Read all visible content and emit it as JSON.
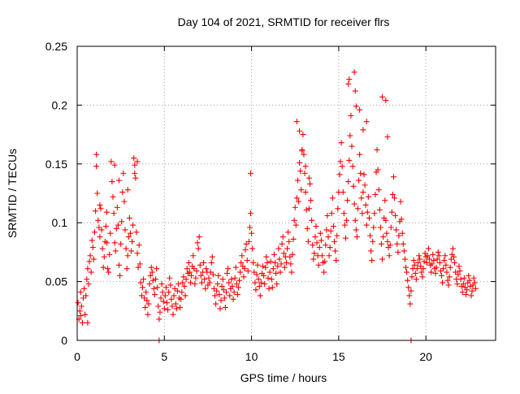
{
  "chart_data": {
    "type": "scatter",
    "title": "Day 104 of 2021, SRMTID for receiver flrs",
    "xlabel": "GPS time / hours",
    "ylabel": "SRMTID / TECUs",
    "xlim": [
      0,
      24
    ],
    "ylim": [
      0,
      0.25
    ],
    "xticks": [
      0,
      5,
      10,
      15,
      20
    ],
    "xtick_labels": [
      "0",
      "5",
      "10",
      "15",
      "20"
    ],
    "yticks": [
      0,
      0.05,
      0.1,
      0.15,
      0.2,
      0.25
    ],
    "ytick_labels": [
      "0",
      "0.05",
      "0.1",
      "0.15",
      "0.2",
      "0.25"
    ],
    "grid": true,
    "marker": "+",
    "color": "#ff0000",
    "series": [
      {
        "name": "SRMTID",
        "x": [
          0.05,
          0.1,
          0.15,
          0.2,
          0.25,
          0.3,
          0.35,
          0.4,
          0.45,
          0.5,
          0.55,
          0.6,
          0.65,
          0.7,
          0.75,
          0.8,
          0.85,
          0.9,
          0.95,
          1.0,
          1.05,
          1.1,
          1.15,
          1.2,
          1.25,
          1.3,
          1.35,
          1.4,
          1.45,
          1.5,
          1.55,
          1.6,
          1.65,
          1.7,
          1.75,
          1.8,
          1.85,
          1.9,
          1.95,
          2.0,
          2.05,
          2.1,
          2.15,
          2.2,
          2.25,
          2.3,
          2.35,
          2.4,
          2.45,
          2.5,
          2.55,
          2.6,
          2.65,
          2.7,
          2.75,
          2.8,
          2.85,
          2.9,
          2.95,
          3.0,
          3.05,
          3.1,
          3.15,
          3.2,
          3.25,
          3.3,
          3.35,
          3.4,
          3.45,
          3.5,
          3.55,
          3.6,
          3.65,
          3.7,
          3.75,
          3.8,
          3.85,
          3.9,
          3.95,
          4.0,
          4.05,
          4.1,
          4.15,
          4.2,
          4.25,
          4.3,
          4.35,
          4.4,
          4.45,
          4.5,
          4.55,
          4.6,
          4.65,
          4.7,
          4.75,
          4.8,
          4.85,
          4.9,
          4.95,
          5.0,
          5.05,
          5.1,
          5.15,
          5.2,
          5.25,
          5.3,
          5.35,
          5.4,
          5.45,
          5.5,
          5.55,
          5.6,
          5.65,
          5.7,
          5.75,
          5.8,
          5.85,
          5.9,
          5.95,
          6.0,
          6.05,
          6.1,
          6.15,
          6.2,
          6.25,
          6.3,
          6.35,
          6.4,
          6.45,
          6.5,
          6.55,
          6.6,
          6.65,
          6.7,
          6.75,
          6.8,
          6.85,
          6.9,
          6.95,
          7.0,
          7.05,
          7.1,
          7.15,
          7.2,
          7.25,
          7.3,
          7.35,
          7.4,
          7.45,
          7.5,
          7.55,
          7.6,
          7.65,
          7.7,
          7.75,
          7.8,
          7.85,
          7.9,
          7.95,
          8.0,
          8.05,
          8.1,
          8.15,
          8.2,
          8.25,
          8.3,
          8.35,
          8.4,
          8.45,
          8.5,
          8.55,
          8.6,
          8.65,
          8.7,
          8.75,
          8.8,
          8.85,
          8.9,
          8.95,
          9.0,
          9.05,
          9.1,
          9.15,
          9.2,
          9.25,
          9.3,
          9.35,
          9.4,
          9.45,
          9.5,
          9.55,
          9.6,
          9.65,
          9.7,
          9.75,
          9.8,
          9.85,
          9.9,
          9.95,
          10.0,
          10.05,
          10.1,
          10.15,
          10.2,
          10.25,
          10.3,
          10.35,
          10.4,
          10.45,
          10.5,
          10.55,
          10.6,
          10.65,
          10.7,
          10.75,
          10.8,
          10.85,
          10.9,
          10.95,
          11.0,
          11.05,
          11.1,
          11.15,
          11.2,
          11.25,
          11.3,
          11.35,
          11.4,
          11.45,
          11.5,
          11.55,
          11.6,
          11.65,
          11.7,
          11.75,
          11.8,
          11.85,
          11.9,
          11.95,
          12.0,
          12.05,
          12.1,
          12.15,
          12.2,
          12.25,
          12.3,
          12.35,
          12.4,
          12.45,
          12.5,
          12.55,
          12.6,
          12.65,
          12.7,
          12.75,
          12.8,
          12.85,
          12.9,
          12.95,
          13.0,
          13.05,
          13.1,
          13.15,
          13.2,
          13.25,
          13.3,
          13.35,
          13.4,
          13.45,
          13.5,
          13.55,
          13.6,
          13.65,
          13.7,
          13.75,
          13.8,
          13.85,
          13.9,
          13.95,
          14.0,
          14.05,
          14.1,
          14.15,
          14.2,
          14.25,
          14.3,
          14.35,
          14.4,
          14.45,
          14.5,
          14.55,
          14.6,
          14.65,
          14.7,
          14.75,
          14.8,
          14.85,
          14.9,
          14.95,
          15.0,
          15.05,
          15.1,
          15.15,
          15.2,
          15.25,
          15.3,
          15.35,
          15.4,
          15.45,
          15.5,
          15.55,
          15.6,
          15.65,
          15.7,
          15.75,
          15.8,
          15.85,
          15.9,
          15.95,
          16.0,
          16.05,
          16.1,
          16.15,
          16.2,
          16.25,
          16.3,
          16.35,
          16.4,
          16.45,
          16.5,
          16.55,
          16.6,
          16.65,
          16.7,
          16.75,
          16.8,
          16.85,
          16.9,
          16.95,
          17.0,
          17.05,
          17.1,
          17.15,
          17.2,
          17.25,
          17.3,
          17.35,
          17.4,
          17.45,
          17.5,
          17.55,
          17.6,
          17.65,
          17.7,
          17.75,
          17.8,
          17.85,
          17.9,
          17.95,
          18.0,
          18.05,
          18.1,
          18.15,
          18.2,
          18.25,
          18.3,
          18.35,
          18.4,
          18.45,
          18.5,
          18.55,
          18.6,
          18.65,
          18.7,
          18.75,
          18.8,
          18.85,
          18.9,
          18.95,
          19.0,
          19.05,
          19.1,
          19.15,
          19.2,
          19.25,
          19.3,
          19.35,
          19.4,
          19.45,
          19.5,
          19.55,
          19.6,
          19.65,
          19.7,
          19.75,
          19.8,
          19.85,
          19.9,
          19.95,
          20.0,
          20.05,
          20.1,
          20.15,
          20.2,
          20.25,
          20.3,
          20.35,
          20.4,
          20.45,
          20.5,
          20.55,
          20.6,
          20.65,
          20.7,
          20.75,
          20.8,
          20.85,
          20.9,
          20.95,
          21.0,
          21.05,
          21.1,
          21.15,
          21.2,
          21.25,
          21.3,
          21.35,
          21.4,
          21.45,
          21.5,
          21.55,
          21.6,
          21.65,
          21.7,
          21.75,
          21.8,
          21.85,
          21.9,
          21.95,
          22.0,
          22.05,
          22.1,
          22.15,
          22.2,
          22.25,
          22.3,
          22.35,
          22.4,
          22.45,
          22.5,
          22.55,
          22.6,
          22.65,
          22.7,
          22.75,
          22.8,
          22.85,
          0.2,
          0.6,
          1.1,
          1.3,
          1.7,
          2.15,
          2.4,
          2.9,
          3.3,
          3.45,
          12.6,
          12.75,
          12.9,
          13.1,
          13.3,
          15.55,
          15.6,
          15.9,
          15.95,
          16.0,
          16.2,
          16.4,
          16.6,
          17.5,
          17.7,
          17.8,
          4.7,
          19.15,
          9.95
        ],
        "y": [
          0.032,
          0.018,
          0.025,
          0.041,
          0.029,
          0.015,
          0.036,
          0.044,
          0.022,
          0.038,
          0.052,
          0.061,
          0.048,
          0.067,
          0.072,
          0.058,
          0.085,
          0.079,
          0.069,
          0.092,
          0.11,
          0.148,
          0.125,
          0.102,
          0.096,
          0.088,
          0.112,
          0.094,
          0.078,
          0.062,
          0.071,
          0.084,
          0.097,
          0.083,
          0.061,
          0.058,
          0.073,
          0.091,
          0.152,
          0.135,
          0.122,
          0.108,
          0.083,
          0.076,
          0.095,
          0.113,
          0.098,
          0.064,
          0.055,
          0.082,
          0.101,
          0.126,
          0.142,
          0.118,
          0.094,
          0.078,
          0.061,
          0.072,
          0.088,
          0.104,
          0.091,
          0.076,
          0.084,
          0.098,
          0.155,
          0.149,
          0.138,
          0.092,
          0.074,
          0.062,
          0.081,
          0.065,
          0.049,
          0.038,
          0.045,
          0.052,
          0.036,
          0.028,
          0.041,
          0.034,
          0.022,
          0.031,
          0.048,
          0.055,
          0.062,
          0.058,
          0.051,
          0.044,
          0.039,
          0.052,
          0.061,
          0.045,
          0.029,
          0.018,
          0.024,
          0.036,
          0.048,
          0.041,
          0.033,
          0.027,
          0.038,
          0.045,
          0.032,
          0.026,
          0.041,
          0.053,
          0.047,
          0.035,
          0.029,
          0.022,
          0.038,
          0.044,
          0.031,
          0.027,
          0.042,
          0.048,
          0.036,
          0.028,
          0.035,
          0.041,
          0.049,
          0.054,
          0.046,
          0.038,
          0.052,
          0.061,
          0.057,
          0.066,
          0.058,
          0.049,
          0.055,
          0.063,
          0.072,
          0.061,
          0.048,
          0.053,
          0.059,
          0.083,
          0.078,
          0.088,
          0.064,
          0.055,
          0.049,
          0.058,
          0.066,
          0.052,
          0.044,
          0.061,
          0.058,
          0.047,
          0.053,
          0.049,
          0.058,
          0.066,
          0.071,
          0.056,
          0.044,
          0.038,
          0.031,
          0.042,
          0.048,
          0.055,
          0.039,
          0.027,
          0.034,
          0.046,
          0.052,
          0.043,
          0.036,
          0.028,
          0.041,
          0.057,
          0.061,
          0.049,
          0.038,
          0.044,
          0.052,
          0.046,
          0.035,
          0.041,
          0.053,
          0.062,
          0.048,
          0.039,
          0.045,
          0.051,
          0.058,
          0.066,
          0.072,
          0.063,
          0.054,
          0.061,
          0.077,
          0.082,
          0.068,
          0.059,
          0.084,
          0.096,
          0.108,
          0.091,
          0.078,
          0.066,
          0.058,
          0.049,
          0.043,
          0.056,
          0.064,
          0.052,
          0.046,
          0.038,
          0.049,
          0.057,
          0.063,
          0.055,
          0.048,
          0.062,
          0.071,
          0.066,
          0.053,
          0.044,
          0.058,
          0.067,
          0.052,
          0.045,
          0.061,
          0.073,
          0.066,
          0.057,
          0.048,
          0.063,
          0.078,
          0.069,
          0.058,
          0.065,
          0.082,
          0.088,
          0.074,
          0.062,
          0.071,
          0.066,
          0.078,
          0.092,
          0.084,
          0.071,
          0.065,
          0.058,
          0.073,
          0.086,
          0.102,
          0.113,
          0.098,
          0.121,
          0.136,
          0.118,
          0.151,
          0.144,
          0.128,
          0.162,
          0.175,
          0.158,
          0.142,
          0.126,
          0.111,
          0.095,
          0.084,
          0.112,
          0.133,
          0.119,
          0.102,
          0.081,
          0.069,
          0.074,
          0.088,
          0.097,
          0.083,
          0.072,
          0.064,
          0.079,
          0.091,
          0.085,
          0.072,
          0.066,
          0.058,
          0.067,
          0.081,
          0.094,
          0.106,
          0.088,
          0.072,
          0.079,
          0.093,
          0.108,
          0.121,
          0.097,
          0.084,
          0.076,
          0.068,
          0.089,
          0.112,
          0.126,
          0.141,
          0.152,
          0.168,
          0.148,
          0.126,
          0.108,
          0.098,
          0.087,
          0.102,
          0.119,
          0.135,
          0.153,
          0.174,
          0.191,
          0.165,
          0.148,
          0.131,
          0.116,
          0.102,
          0.094,
          0.088,
          0.112,
          0.136,
          0.158,
          0.142,
          0.121,
          0.108,
          0.126,
          0.141,
          0.132,
          0.115,
          0.098,
          0.109,
          0.122,
          0.104,
          0.089,
          0.076,
          0.068,
          0.084,
          0.096,
          0.108,
          0.124,
          0.143,
          0.162,
          0.145,
          0.128,
          0.111,
          0.096,
          0.082,
          0.069,
          0.088,
          0.104,
          0.119,
          0.102,
          0.091,
          0.084,
          0.079,
          0.072,
          0.081,
          0.096,
          0.109,
          0.124,
          0.139,
          0.121,
          0.106,
          0.094,
          0.082,
          0.075,
          0.089,
          0.101,
          0.118,
          0.103,
          0.091,
          0.082,
          0.076,
          0.069,
          0.062,
          0.058,
          0.051,
          0.045,
          0.038,
          0.031,
          0.042,
          0.054,
          0.061,
          0.068,
          0.064,
          0.057,
          0.052,
          0.061,
          0.066,
          0.072,
          0.069,
          0.063,
          0.058,
          0.054,
          0.061,
          0.067,
          0.074,
          0.071,
          0.066,
          0.072,
          0.078,
          0.069,
          0.064,
          0.058,
          0.065,
          0.073,
          0.068,
          0.061,
          0.057,
          0.062,
          0.069,
          0.075,
          0.072,
          0.066,
          0.059,
          0.055,
          0.049,
          0.061,
          0.068,
          0.072,
          0.064,
          0.058,
          0.051,
          0.047,
          0.054,
          0.062,
          0.069,
          0.073,
          0.078,
          0.071,
          0.066,
          0.058,
          0.052,
          0.048,
          0.056,
          0.063,
          0.059,
          0.052,
          0.046,
          0.041,
          0.048,
          0.053,
          0.045,
          0.039,
          0.043,
          0.049,
          0.055,
          0.051,
          0.046,
          0.038,
          0.042,
          0.047,
          0.053,
          0.049,
          0.044,
          0.021,
          0.015,
          0.158,
          0.115,
          0.109,
          0.149,
          0.136,
          0.128,
          0.142,
          0.152,
          0.186,
          0.178,
          0.161,
          0.148,
          0.138,
          0.218,
          0.222,
          0.228,
          0.212,
          0.199,
          0.196,
          0.179,
          0.186,
          0.207,
          0.204,
          0.173,
          0.0,
          0.0,
          0.142
        ]
      }
    ]
  }
}
